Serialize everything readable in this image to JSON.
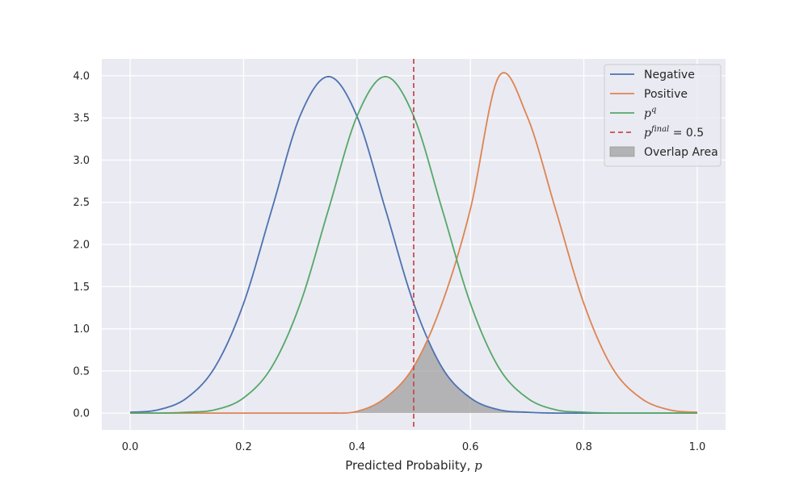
{
  "chart_data": {
    "type": "line",
    "title": "",
    "xlabel": "Predicted Probabiity, ",
    "xlabel_var": "p",
    "ylabel": "",
    "xlim": [
      -0.05,
      1.05
    ],
    "ylim": [
      -0.2,
      4.2
    ],
    "grid": true,
    "legend_position": "top-right",
    "x_ticks": [
      0.0,
      0.2,
      0.4,
      0.6,
      0.8,
      1.0
    ],
    "x_tick_labels": [
      "0.0",
      "0.2",
      "0.4",
      "0.6",
      "0.8",
      "1.0"
    ],
    "y_ticks": [
      0.0,
      0.5,
      1.0,
      1.5,
      2.0,
      2.5,
      3.0,
      3.5,
      4.0
    ],
    "y_tick_labels": [
      "0.0",
      "0.5",
      "1.0",
      "1.5",
      "2.0",
      "2.5",
      "3.0",
      "3.5",
      "4.0"
    ],
    "x": [
      0.0,
      0.05,
      0.1,
      0.15,
      0.2,
      0.25,
      0.3,
      0.35,
      0.4,
      0.45,
      0.5,
      0.55,
      0.6,
      0.65,
      0.7,
      0.75,
      0.8,
      0.85,
      0.9,
      0.95,
      1.0
    ],
    "series": [
      {
        "name": "Negative",
        "color": "#4c72b0",
        "values": [
          0.01,
          0.04,
          0.18,
          0.55,
          1.3,
          2.42,
          3.53,
          3.99,
          3.52,
          2.42,
          1.3,
          0.54,
          0.18,
          0.04,
          0.01,
          0.0,
          0.0,
          0.0,
          0.0,
          0.0,
          0.0
        ]
      },
      {
        "name": "Positive",
        "color": "#dd8452",
        "values": [
          0.0,
          0.0,
          0.0,
          0.0,
          0.0,
          0.0,
          0.0,
          0.0,
          0.02,
          0.18,
          0.55,
          1.3,
          2.42,
          3.99,
          3.52,
          2.42,
          1.3,
          0.54,
          0.18,
          0.04,
          0.01
        ]
      },
      {
        "name": "p^q",
        "name_base": "p",
        "name_sup": "q",
        "color": "#55a868",
        "values": [
          0.0,
          0.0,
          0.01,
          0.04,
          0.18,
          0.55,
          1.3,
          2.42,
          3.52,
          3.99,
          3.52,
          2.42,
          1.3,
          0.54,
          0.18,
          0.04,
          0.01,
          0.0,
          0.0,
          0.0,
          0.0
        ]
      }
    ],
    "threshold": {
      "name": "p^final = 0.5",
      "name_base": "p",
      "name_sup": "final",
      "name_rest": " = 0.5",
      "x": 0.5,
      "color": "#c44e52",
      "style": "dashed"
    },
    "overlap_area": {
      "name": "Overlap Area",
      "color": "#a0a0a0",
      "description_x_range": [
        0.3,
        0.7
      ]
    }
  },
  "colors": {
    "plot_background": "#eaeaf2",
    "grid": "#ffffff",
    "text": "#262626"
  }
}
